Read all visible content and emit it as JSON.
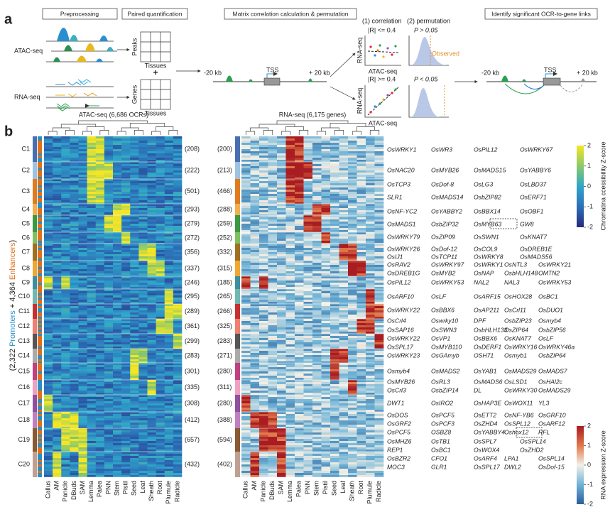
{
  "panel_a": {
    "label": "a",
    "steps": [
      "Preprocessing",
      "Paired quantification",
      "Matrix correlation calculation & permutation",
      "Identify significant OCR-to-gene links"
    ],
    "atac": "ATAC-seq",
    "rna": "RNA-seq",
    "peaks": "Peaks",
    "genes": "Genes",
    "tissues": "Tissues",
    "plus": "+",
    "minus20": "-20 kb",
    "tss": "TSS",
    "plus20": "+ 20 kb",
    "corr_title": "(1) correlation",
    "perm_title": "(2) permutation",
    "r_low": "|R| <= 0.4",
    "p_high": "P > 0.05",
    "observed": "Observed",
    "r_high": "|R| >= 0.4",
    "p_low": "P < 0.05"
  },
  "panel_b": {
    "label": "b",
    "atac_title": "ATAC-seq (6,686 OCRs)",
    "rna_title": "RNA-seq (6,175 genes)",
    "ylabel_parts": [
      "(2,322 ",
      "Promoters",
      " + 4,364 ",
      "Enhancers",
      ")"
    ],
    "ylabel_colors": [
      "#222",
      "#2a8fc4",
      "#222",
      "#e0701c",
      "#222"
    ],
    "tissues": [
      "Callus",
      "AM",
      "Panicle",
      "DBuds",
      "SAM",
      "Lemma",
      "Palea",
      "PNN",
      "Stem",
      "Pistil",
      "Seed",
      "Leaf",
      "Sheath",
      "Root",
      "Plumule",
      "Radicle"
    ],
    "clusters": [
      {
        "name": "C1",
        "atac": "(208)",
        "rna": "(200)",
        "color": "#4a6fb0",
        "genes": [
          [
            "OsWRKY1",
            "OsWR3",
            "OsPIL12",
            "OsWRKY67"
          ]
        ]
      },
      {
        "name": "C2",
        "atac": "(222)",
        "rna": "(213)",
        "color": "#9cc3e0",
        "genes": [
          [
            "OsNAC20",
            "OsMYB26",
            "OsMADS15",
            "OsYABBY6"
          ]
        ]
      },
      {
        "name": "C3",
        "atac": "(501)",
        "rna": "(466)",
        "color": "#e07b20",
        "genes": [
          [
            "OsTCP3",
            "OsDof-8",
            "OsLG3",
            "OsLBD37"
          ],
          [
            "SLR1",
            "OsMADS14",
            "OsbZIP82",
            "OsERF71"
          ]
        ]
      },
      {
        "name": "C4",
        "atac": "(293)",
        "rna": "(288)",
        "color": "#f0b050",
        "genes": [
          [
            "OsNF-YC2",
            "OsYABBY2",
            "OsBBX14",
            "OsOBF1"
          ]
        ]
      },
      {
        "name": "C5",
        "atac": "(279)",
        "rna": "(259)",
        "color": "#3a9a40",
        "genes": [
          [
            "OsMADS1",
            "OsbZIP32",
            "OsMYB63",
            "GW8"
          ]
        ]
      },
      {
        "name": "C6",
        "atac": "(272)",
        "rna": "(252)",
        "color": "#80c060",
        "genes": [
          [
            "OsWRKY79",
            "OsZIP09",
            "OsSWN1",
            "OsKNAT7"
          ]
        ]
      },
      {
        "name": "C7",
        "atac": "(356)",
        "rna": "(332)",
        "color": "#a07020",
        "genes": [
          [
            "OsWRKY26",
            "OsDof-12",
            "OsCOL9",
            "OsDREB1E"
          ],
          [
            "OsIJ1",
            "OsTCP11",
            "OsWRKY8",
            "OsMADS56"
          ]
        ]
      },
      {
        "name": "C8",
        "atac": "(337)",
        "rna": "(315)",
        "color": "#f0a830",
        "genes": [
          [
            "OsRAV2",
            "OsWRKY97",
            "OsWRKY1",
            "OsNTL3",
            "OsWRKY21"
          ],
          [
            "OsDREB1G",
            "OsMYB2",
            "OsNAP",
            "OsbHLH148",
            "OMTN2"
          ]
        ]
      },
      {
        "name": "C9",
        "atac": "(246)",
        "rna": "(185)",
        "color": "#3a90a0",
        "genes": [
          [
            "OsPIL12",
            "OsWRKY53",
            "NAL2",
            "NAL3",
            "OsWRKY53"
          ]
        ]
      },
      {
        "name": "C10",
        "atac": "(295)",
        "rna": "(265)",
        "color": "#70b8b0",
        "genes": [
          [
            "OsARF10",
            "OsLF",
            "OsARF15",
            "OsHOX28",
            "OsBC1"
          ]
        ]
      },
      {
        "name": "C11",
        "atac": "(289)",
        "rna": "(266)",
        "color": "#c83030",
        "genes": [
          [
            "OsWRKY22",
            "OsBBX6",
            "OsAP211",
            "OsCrl11",
            "OsDUO1"
          ]
        ]
      },
      {
        "name": "C12",
        "atac": "(361)",
        "rna": "(325)",
        "color": "#f08070",
        "genes": [
          [
            "OsCrl4",
            "Oswrky10",
            "DPF",
            "OsbZIP23",
            "Osmyb4"
          ],
          [
            "OsSAP16",
            "OsSWN3",
            "OsbHLH133",
            "OsZIP64",
            "OsbZIP56"
          ]
        ]
      },
      {
        "name": "C13",
        "atac": "(299)",
        "rna": "(283)",
        "color": "#555555",
        "genes": [
          [
            "OsWRKY22",
            "OsVP1",
            "OsBBX6",
            "OsKNAT7",
            "OsLF"
          ],
          [
            "OsSPL17",
            "OsMYB110",
            "OsDERF1",
            "OsWRKY16",
            "OsWRKY46a"
          ]
        ]
      },
      {
        "name": "C14",
        "atac": "(283)",
        "rna": "(271)",
        "color": "#aaaaaa",
        "genes": [
          [
            "OsWRKY23",
            "OsGAmyb",
            "OSH71",
            "Osmyb1",
            "OsbZIP64"
          ]
        ]
      },
      {
        "name": "C15",
        "atac": "(301)",
        "rna": "(280)",
        "color": "#c04080",
        "genes": [
          [
            "Osmyb4",
            "OsMADS2",
            "OsYAB1",
            "OsMADS29",
            "OsMADS7"
          ]
        ]
      },
      {
        "name": "C16",
        "atac": "(335)",
        "rna": "(311)",
        "color": "#f0a0c0",
        "genes": [
          [
            "OsMYB26",
            "OsRL3",
            "OsMADS6",
            "OsLSD1",
            "OsHAl2c"
          ],
          [
            "OsCrl3",
            "OsbZIP14",
            "DL",
            "OsWRKY30",
            "OsMADS29"
          ]
        ]
      },
      {
        "name": "C17",
        "atac": "(308)",
        "rna": "(280)",
        "color": "#9050a0",
        "genes": [
          [
            "DWT1",
            "OsIRO2",
            "OsHAP3E",
            "OsWOX11",
            "YL3"
          ]
        ]
      },
      {
        "name": "C18",
        "atac": "(412)",
        "rna": "(388)",
        "color": "#c080c0",
        "genes": [
          [
            "OsDOS",
            "OsPCF5",
            "OsETT2",
            "OsNF-YB6",
            "OsGRF10"
          ],
          [
            "OsGRF2",
            "OsPCF3",
            "OsZHD4",
            "OsSPL12",
            "OsARF12"
          ]
        ]
      },
      {
        "name": "C19",
        "atac": "(657)",
        "rna": "(594)",
        "color": "#8a5a30",
        "genes": [
          [
            "OsPCF5",
            "OSBZ8",
            "OsYABBY4",
            "Oshox12",
            "RFL"
          ],
          [
            "OsMHZ6",
            "OsTB1",
            "OsSPL7",
            "OsSPL14"
          ],
          [
            "REP1",
            "OsBC1",
            "OsWOX4",
            "OsZHD2"
          ]
        ]
      },
      {
        "name": "C20",
        "atac": "(432)",
        "rna": "(402)",
        "color": "#c0a090",
        "genes": [
          [
            "OsBZR2",
            "CFO1",
            "OsARF4",
            "LPA1",
            "OsSPL14"
          ],
          [
            "MOC3",
            "GLR1",
            "OsSPL17",
            "DWL2",
            "OsDof-15"
          ]
        ]
      }
    ],
    "atac_scale": {
      "title": "Chromatina ccessibility Z-score",
      "lim": [
        -2,
        2
      ],
      "ticks": [
        2,
        1,
        0,
        -1,
        -2
      ]
    },
    "rna_scale": {
      "title": "RNA expression Z-score",
      "lim": [
        -2,
        2
      ],
      "ticks": [
        2,
        1,
        0,
        -1,
        -2
      ]
    }
  }
}
